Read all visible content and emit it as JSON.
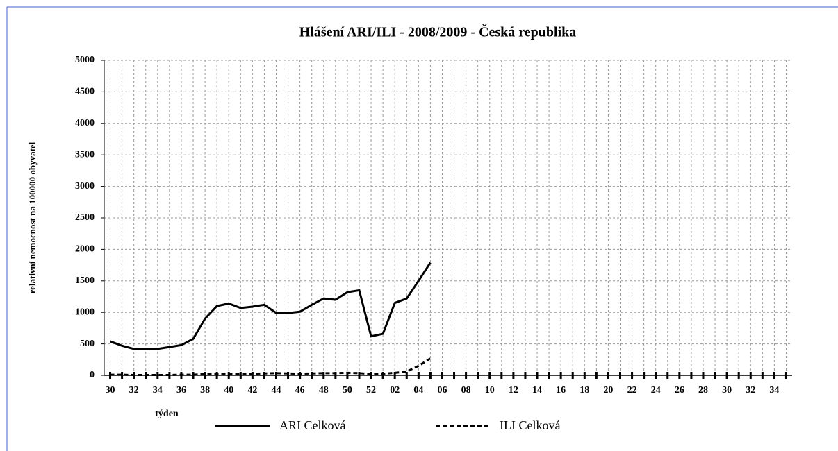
{
  "chart_data": {
    "type": "line",
    "title": "Hlášení ARI/ILI - 2008/2009 - Česká republika",
    "xlabel": "týden",
    "ylabel": "relativní nemocnost na 100000 obyvatel",
    "categories": [
      "30",
      null,
      "32",
      null,
      "34",
      null,
      "36",
      null,
      "38",
      null,
      "40",
      null,
      "42",
      null,
      "44",
      null,
      "46",
      null,
      "48",
      null,
      "50",
      null,
      "52",
      null,
      "02",
      null,
      "04",
      null,
      "06",
      null,
      "08",
      null,
      "10",
      null,
      "12",
      null,
      "14",
      null,
      "16",
      null,
      "18",
      null,
      "20",
      null,
      "22",
      null,
      "24",
      null,
      "26",
      null,
      "28",
      null,
      "30",
      null,
      "32",
      null,
      "34",
      null
    ],
    "series": [
      {
        "name": "ARI Celková",
        "color": "#000000",
        "dash": "solid",
        "values": [
          540,
          470,
          420,
          420,
          420,
          450,
          480,
          580,
          900,
          1100,
          1140,
          1070,
          1090,
          1120,
          990,
          990,
          1010,
          1120,
          1220,
          1200,
          1320,
          1350,
          620,
          660,
          1150,
          1220,
          1500,
          1790,
          null,
          null,
          null,
          null,
          null,
          null,
          null,
          null,
          null,
          null,
          null,
          null,
          null,
          null,
          null,
          null,
          null,
          null,
          null,
          null,
          null,
          null,
          null,
          null,
          null,
          null,
          null,
          null,
          null,
          null
        ]
      },
      {
        "name": "ILI Celková",
        "color": "#000000",
        "dash": "dashed",
        "values": [
          10,
          10,
          5,
          5,
          5,
          5,
          10,
          10,
          20,
          25,
          25,
          25,
          25,
          30,
          35,
          30,
          25,
          30,
          35,
          35,
          40,
          35,
          20,
          25,
          40,
          60,
          150,
          270,
          null,
          null,
          null,
          null,
          null,
          null,
          null,
          null,
          null,
          null,
          null,
          null,
          null,
          null,
          null,
          null,
          null,
          null,
          null,
          null,
          null,
          null,
          null,
          null,
          null,
          null,
          null,
          null,
          null,
          null
        ]
      }
    ],
    "ylim": [
      0,
      5000
    ],
    "yticks": [
      0,
      500,
      1000,
      1500,
      2000,
      2500,
      3000,
      3500,
      4000,
      4500,
      5000
    ],
    "grid": true,
    "legend": "bottom"
  }
}
